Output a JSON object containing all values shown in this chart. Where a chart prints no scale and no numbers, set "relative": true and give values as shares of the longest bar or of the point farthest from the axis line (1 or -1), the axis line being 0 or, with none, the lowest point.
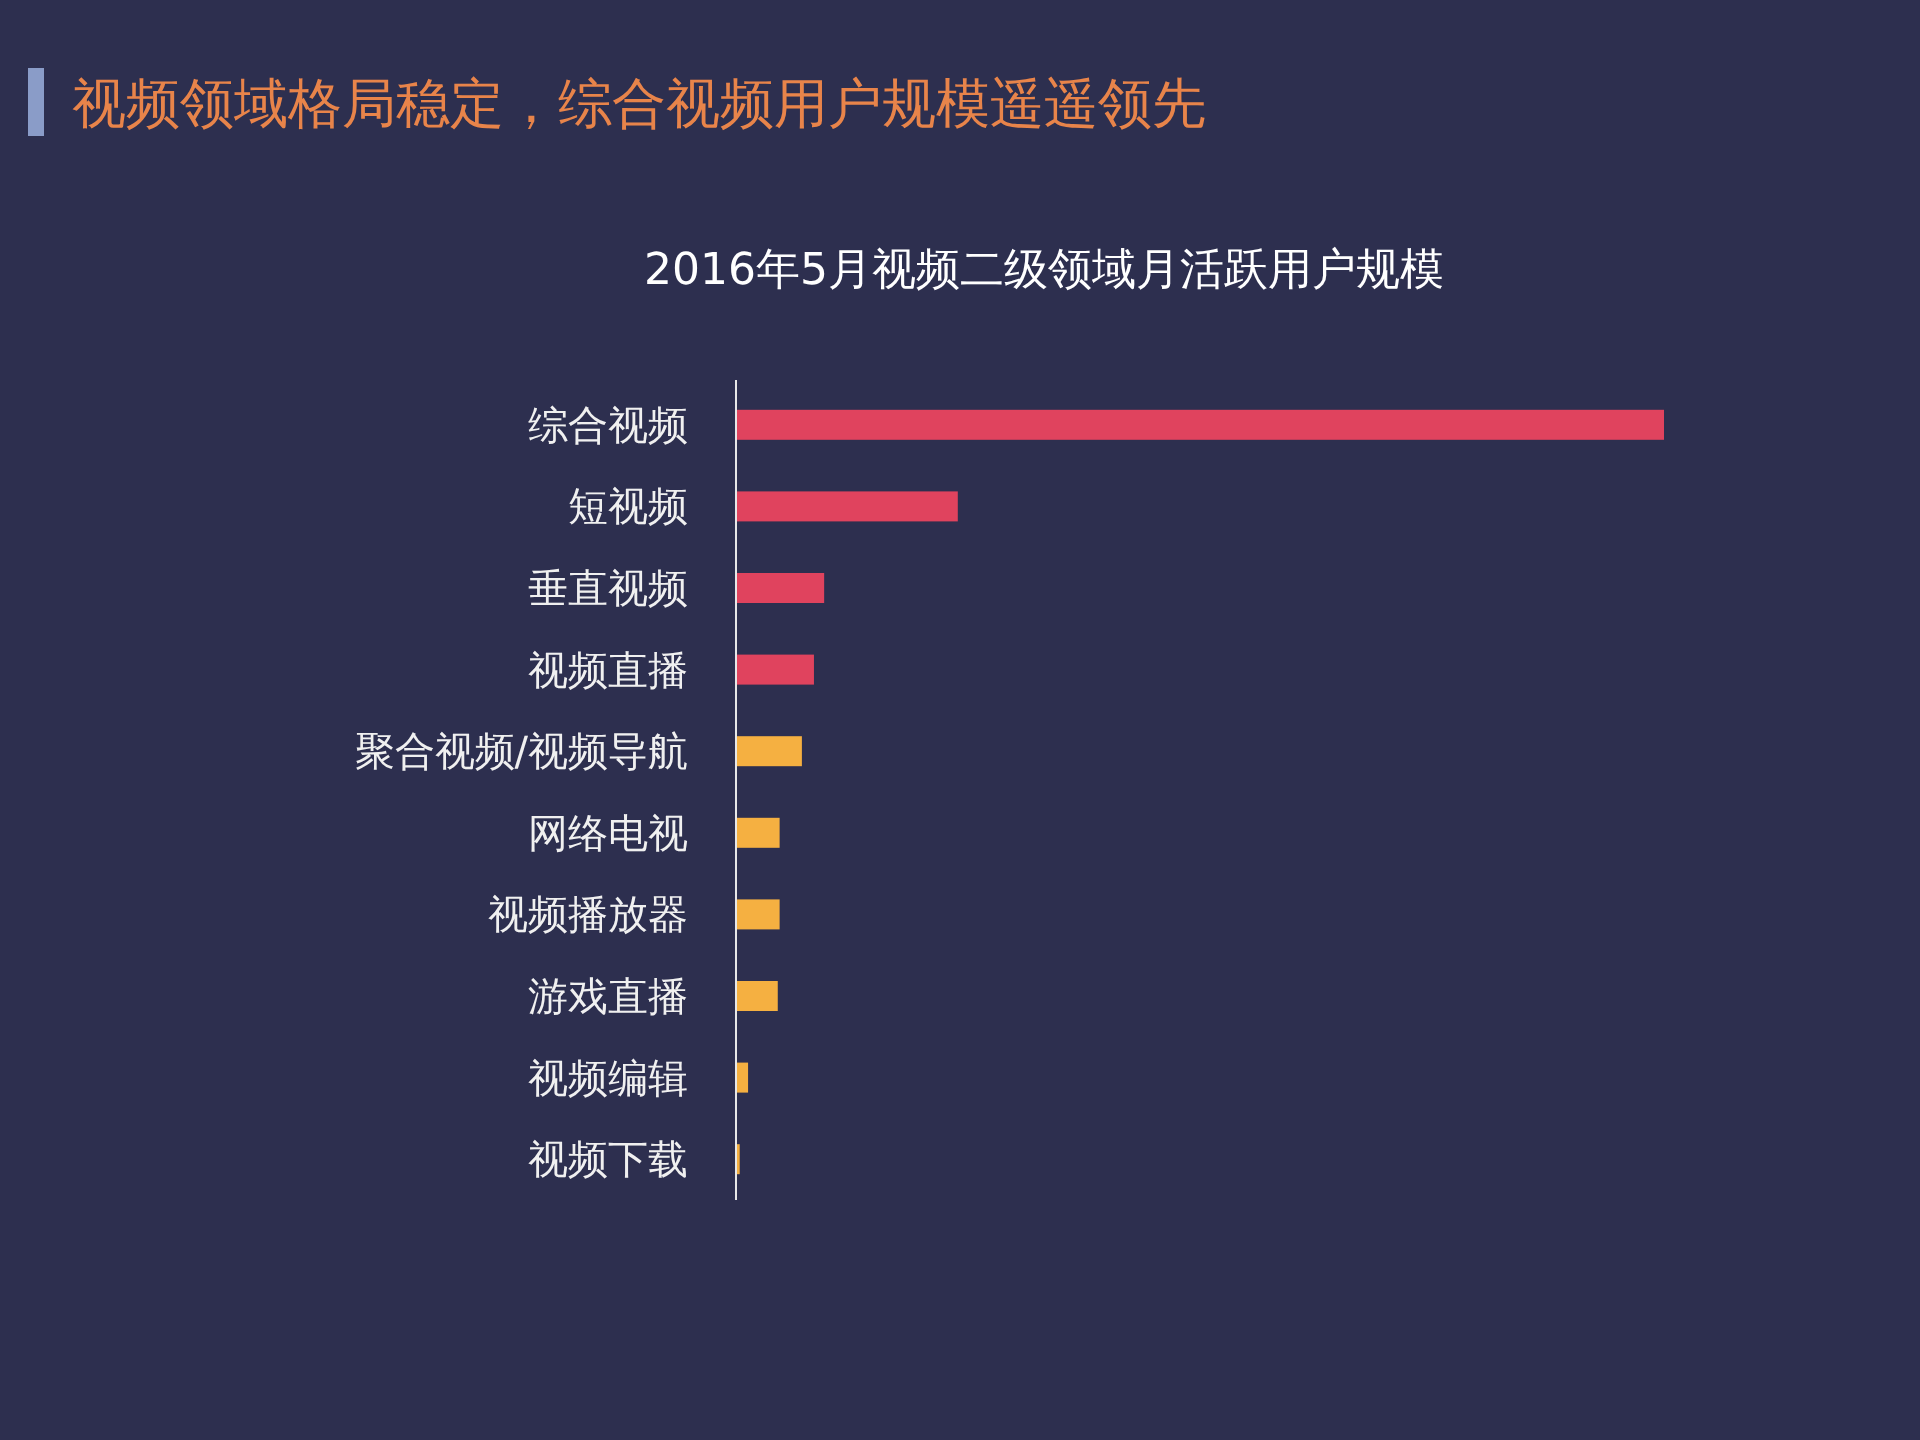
{
  "chart_data": {
    "type": "bar",
    "orientation": "horizontal",
    "title": "视频领域格局稳定，综合视频用户规模遥遥领先",
    "subtitle": "2016年5月视频二级领域月活跃用户规模",
    "categories": [
      "综合视频",
      "短视频",
      "垂直视频",
      "视频直播",
      "聚合视频/视频导航",
      "网络电视",
      "视频播放器",
      "游戏直播",
      "视频编辑",
      "视频下载"
    ],
    "values": [
      1,
      0.239,
      0.095,
      0.084,
      0.071,
      0.047,
      0.047,
      0.045,
      0.013,
      0.004
    ],
    "colors": [
      "#e0435e",
      "#e0435e",
      "#e0435e",
      "#e0435e",
      "#f5b041",
      "#f5b041",
      "#f5b041",
      "#f5b041",
      "#f5b041",
      "#f5b041"
    ],
    "relative": true
  }
}
